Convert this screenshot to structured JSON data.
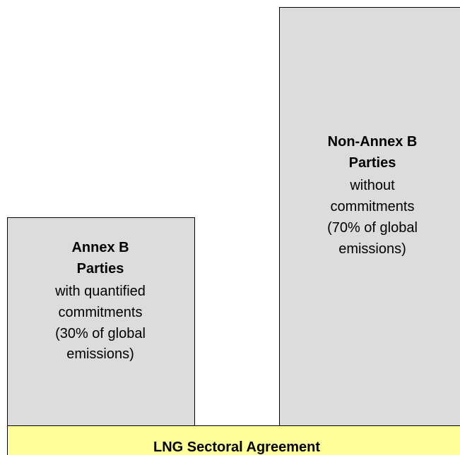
{
  "boxes": [
    {
      "title": [
        "Annex B",
        "Parties"
      ],
      "description": [
        "with quantified",
        "commitments",
        "(30% of global",
        "emissions)"
      ]
    },
    {
      "title": [
        "Non-Annex B",
        "Parties"
      ],
      "description": [
        "without",
        "commitments",
        "(70% of global",
        "emissions)"
      ]
    }
  ],
  "agreement": {
    "label": "LNG Sectoral Agreement"
  }
}
